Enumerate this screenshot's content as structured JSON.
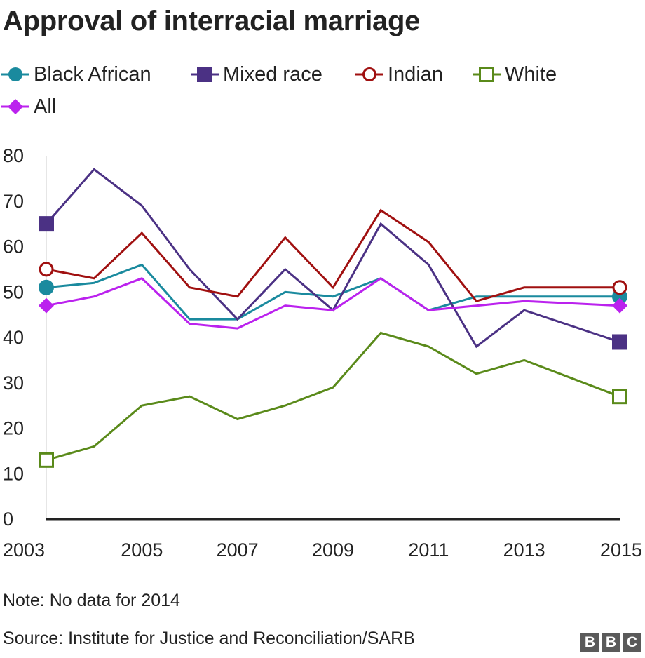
{
  "title": "Approval of interracial marriage",
  "note": "Note: No data for 2014",
  "source": "Source: Institute for Justice and Reconciliation/SARB",
  "logo": {
    "letters": [
      "B",
      "B",
      "C"
    ]
  },
  "legend": [
    {
      "name": "Black African",
      "color": "#1a8a9e",
      "marker": "circle-filled"
    },
    {
      "name": "Mixed race",
      "color": "#4b3184",
      "marker": "square-filled"
    },
    {
      "name": "Indian",
      "color": "#a01010",
      "marker": "circle-open"
    },
    {
      "name": "White",
      "color": "#5a8a1a",
      "marker": "square-open"
    },
    {
      "name": "All",
      "color": "#bb22ee",
      "marker": "diamond-filled"
    }
  ],
  "chart_data": {
    "type": "line",
    "title": "Approval of interracial marriage",
    "xlabel": "",
    "ylabel": "",
    "x": [
      2003,
      2004,
      2005,
      2006,
      2007,
      2008,
      2009,
      2010,
      2011,
      2012,
      2013,
      2015
    ],
    "x_ticks": [
      "2003",
      "2005",
      "2007",
      "2009",
      "2011",
      "2013",
      "2015"
    ],
    "xlim": [
      2003,
      2015
    ],
    "y_ticks": [
      "0",
      "10",
      "20",
      "30",
      "40",
      "50",
      "60",
      "70",
      "80"
    ],
    "ylim": [
      0,
      80
    ],
    "grid": false,
    "series": [
      {
        "name": "Black African",
        "color": "#1a8a9e",
        "marker": "circle-filled",
        "values": [
          51,
          52,
          56,
          44,
          44,
          50,
          49,
          53,
          46,
          49,
          49,
          49
        ]
      },
      {
        "name": "Mixed race",
        "color": "#4b3184",
        "marker": "square-filled",
        "values": [
          65,
          77,
          69,
          55,
          44,
          55,
          46,
          65,
          56,
          38,
          46,
          39
        ]
      },
      {
        "name": "Indian",
        "color": "#a01010",
        "marker": "circle-open",
        "values": [
          55,
          53,
          63,
          51,
          49,
          62,
          51,
          68,
          61,
          48,
          51,
          51
        ]
      },
      {
        "name": "White",
        "color": "#5a8a1a",
        "marker": "square-open",
        "values": [
          13,
          16,
          25,
          27,
          22,
          25,
          29,
          41,
          38,
          32,
          35,
          27
        ]
      },
      {
        "name": "All",
        "color": "#bb22ee",
        "marker": "diamond-filled",
        "values": [
          47,
          49,
          53,
          43,
          42,
          47,
          46,
          53,
          46,
          47,
          48,
          47
        ]
      }
    ]
  }
}
